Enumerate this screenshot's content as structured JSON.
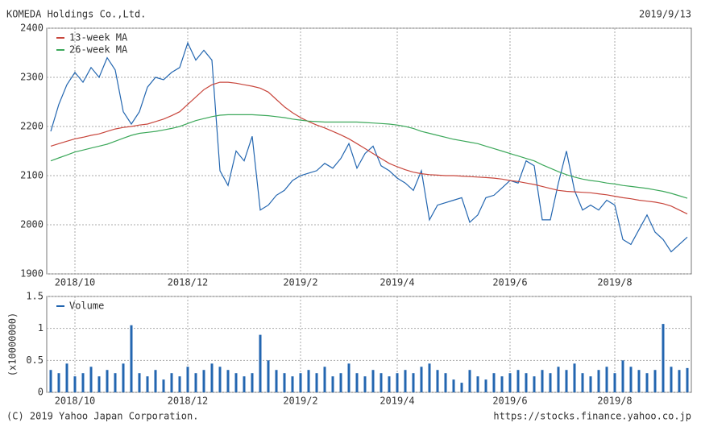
{
  "header": {
    "title": "KOMEDA Holdings Co.,Ltd.",
    "date": "2019/9/13"
  },
  "footer": {
    "copyright": "(C) 2019 Yahoo Japan Corporation.",
    "url": "https://stocks.finance.yahoo.co.jp"
  },
  "chart_data": [
    {
      "type": "line",
      "categories": [
        null,
        null,
        null,
        "2018/10",
        null,
        null,
        null,
        null,
        null,
        null,
        null,
        null,
        null,
        null,
        null,
        null,
        null,
        "2018/12",
        null,
        null,
        null,
        null,
        null,
        null,
        null,
        null,
        null,
        null,
        null,
        null,
        null,
        "2019/2",
        null,
        null,
        null,
        null,
        null,
        null,
        null,
        null,
        null,
        null,
        null,
        "2019/4",
        null,
        null,
        null,
        null,
        null,
        null,
        null,
        null,
        null,
        null,
        null,
        null,
        null,
        "2019/6",
        null,
        null,
        null,
        null,
        null,
        null,
        null,
        null,
        null,
        null,
        null,
        null,
        "2019/8",
        null,
        null,
        null,
        null,
        null,
        null,
        null,
        null,
        null
      ],
      "series": [
        {
          "color": "#2366b0",
          "values": [
            2190,
            2245,
            2285,
            2310,
            2290,
            2320,
            2300,
            2340,
            2315,
            2230,
            2205,
            2230,
            2280,
            2300,
            2295,
            2310,
            2320,
            2370,
            2335,
            2355,
            2335,
            2110,
            2080,
            2150,
            2130,
            2180,
            2030,
            2040,
            2060,
            2070,
            2090,
            2100,
            2105,
            2110,
            2125,
            2115,
            2135,
            2165,
            2115,
            2145,
            2160,
            2120,
            2110,
            2095,
            2085,
            2070,
            2110,
            2010,
            2040,
            2045,
            2050,
            2055,
            2005,
            2020,
            2055,
            2060,
            2075,
            2090,
            2085,
            2130,
            2120,
            2010,
            2010,
            2085,
            2150,
            2070,
            2030,
            2040,
            2030,
            2050,
            2040,
            1970,
            1960,
            1990,
            2020,
            1985,
            1970,
            1945,
            1960,
            1975
          ]
        },
        {
          "name": "13-week MA",
          "color": "#c8463c",
          "values": [
            2160,
            2165,
            2170,
            2175,
            2178,
            2182,
            2185,
            2190,
            2195,
            2198,
            2200,
            2203,
            2205,
            2210,
            2215,
            2222,
            2230,
            2245,
            2260,
            2275,
            2285,
            2290,
            2290,
            2288,
            2285,
            2282,
            2278,
            2270,
            2255,
            2240,
            2228,
            2218,
            2210,
            2203,
            2197,
            2190,
            2183,
            2175,
            2165,
            2155,
            2145,
            2135,
            2125,
            2118,
            2112,
            2107,
            2104,
            2102,
            2101,
            2100,
            2100,
            2099,
            2098,
            2097,
            2096,
            2095,
            2093,
            2090,
            2088,
            2085,
            2082,
            2078,
            2074,
            2070,
            2068,
            2067,
            2066,
            2065,
            2063,
            2061,
            2058,
            2055,
            2053,
            2050,
            2048,
            2046,
            2043,
            2038,
            2030,
            2022
          ]
        },
        {
          "name": "26-week MA",
          "color": "#3ca85a",
          "values": [
            2130,
            2136,
            2142,
            2148,
            2152,
            2156,
            2160,
            2164,
            2170,
            2176,
            2182,
            2186,
            2188,
            2190,
            2193,
            2196,
            2200,
            2206,
            2212,
            2216,
            2220,
            2223,
            2224,
            2224,
            2224,
            2224,
            2223,
            2222,
            2220,
            2218,
            2215,
            2213,
            2211,
            2210,
            2209,
            2209,
            2209,
            2209,
            2209,
            2208,
            2207,
            2206,
            2205,
            2203,
            2200,
            2196,
            2190,
            2186,
            2182,
            2178,
            2174,
            2171,
            2168,
            2165,
            2160,
            2155,
            2150,
            2145,
            2140,
            2135,
            2130,
            2122,
            2115,
            2108,
            2102,
            2097,
            2093,
            2090,
            2088,
            2085,
            2083,
            2080,
            2078,
            2076,
            2074,
            2071,
            2068,
            2064,
            2059,
            2054
          ]
        }
      ],
      "ylim": [
        1900,
        2400
      ],
      "yticks": [
        1900,
        2000,
        2100,
        2200,
        2300,
        2400
      ],
      "grid": true,
      "legend": "top-left"
    },
    {
      "type": "bar",
      "y_label": "(x10000000)",
      "categories": [
        null,
        null,
        null,
        "2018/10",
        null,
        null,
        null,
        null,
        null,
        null,
        null,
        null,
        null,
        null,
        null,
        null,
        null,
        "2018/12",
        null,
        null,
        null,
        null,
        null,
        null,
        null,
        null,
        null,
        null,
        null,
        null,
        null,
        "2019/2",
        null,
        null,
        null,
        null,
        null,
        null,
        null,
        null,
        null,
        null,
        null,
        "2019/4",
        null,
        null,
        null,
        null,
        null,
        null,
        null,
        null,
        null,
        null,
        null,
        null,
        null,
        "2019/6",
        null,
        null,
        null,
        null,
        null,
        null,
        null,
        null,
        null,
        null,
        null,
        null,
        "2019/8",
        null,
        null,
        null,
        null,
        null,
        null,
        null,
        null,
        null
      ],
      "series": [
        {
          "name": "Volume",
          "color": "#2366b0",
          "values": [
            0.35,
            0.3,
            0.45,
            0.25,
            0.3,
            0.4,
            0.25,
            0.35,
            0.3,
            0.45,
            1.05,
            0.3,
            0.25,
            0.35,
            0.2,
            0.3,
            0.25,
            0.4,
            0.3,
            0.35,
            0.45,
            0.4,
            0.35,
            0.3,
            0.25,
            0.3,
            0.9,
            0.5,
            0.35,
            0.3,
            0.25,
            0.3,
            0.35,
            0.3,
            0.4,
            0.25,
            0.3,
            0.45,
            0.3,
            0.25,
            0.35,
            0.3,
            0.25,
            0.3,
            0.35,
            0.3,
            0.4,
            0.45,
            0.35,
            0.3,
            0.2,
            0.15,
            0.35,
            0.25,
            0.2,
            0.3,
            0.25,
            0.3,
            0.35,
            0.3,
            0.25,
            0.35,
            0.3,
            0.4,
            0.35,
            0.45,
            0.3,
            0.25,
            0.35,
            0.4,
            0.3,
            0.5,
            0.4,
            0.35,
            0.3,
            0.35,
            1.07,
            0.4,
            0.35,
            0.38
          ]
        }
      ],
      "ylim": [
        0,
        1.5
      ],
      "yticks": [
        0,
        0.5,
        1,
        1.5
      ],
      "grid": true,
      "legend": "top-left"
    }
  ]
}
